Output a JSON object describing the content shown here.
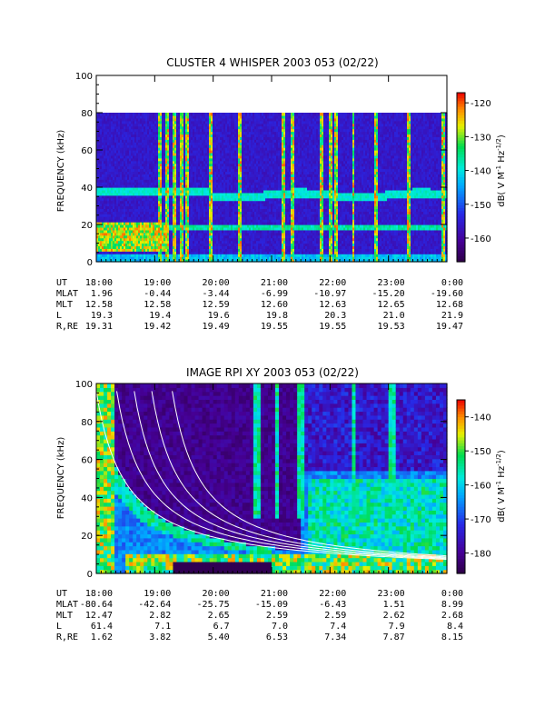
{
  "chart_data": [
    {
      "type": "heatmap",
      "title": "CLUSTER 4 WHISPER 2003 053 (02/22)",
      "ylabel": "FREQUENCY (kHz)",
      "ylim": [
        0,
        100
      ],
      "yticks": [
        "0",
        "20",
        "40",
        "60",
        "80",
        "100"
      ],
      "data_ceiling_khz": 80,
      "xticks": [
        "18:00",
        "19:00",
        "20:00",
        "21:00",
        "22:00",
        "23:00",
        "0:00"
      ],
      "colorbar": {
        "label": "dB( V M",
        "label_sup1": "-1",
        "label_mid": " Hz",
        "label_sup2": "-1/2",
        "label_end": ")",
        "range": [
          -167,
          -117
        ],
        "ticks": [
          "-120",
          "-130",
          "-140",
          "-150",
          "-160"
        ]
      },
      "features": {
        "band_upper_khz": 38,
        "band_lower_khz": 19,
        "intense_region_khz": [
          12,
          22
        ],
        "intense_region_hours": [
          18.0,
          19.2
        ],
        "vertical_bursts_hours": [
          19.1,
          19.2,
          19.35,
          19.45,
          19.55,
          19.95,
          20.45,
          21.2,
          21.35,
          21.85,
          22.0,
          22.1,
          22.4,
          22.8,
          23.35,
          23.95
        ]
      },
      "ephemeris": {
        "labels": [
          "UT",
          "MLAT",
          "MLT",
          "L",
          "R,RE"
        ],
        "rows": [
          [
            "18:00",
            "19:00",
            "20:00",
            "21:00",
            "22:00",
            "23:00",
            "0:00"
          ],
          [
            "1.96",
            "-0.44",
            "-3.44",
            "-6.99",
            "-10.97",
            "-15.20",
            "-19.60"
          ],
          [
            "12.58",
            "12.58",
            "12.59",
            "12.60",
            "12.63",
            "12.65",
            "12.68"
          ],
          [
            "19.3",
            "19.4",
            "19.6",
            "19.8",
            "20.3",
            "21.0",
            "21.9"
          ],
          [
            "19.31",
            "19.42",
            "19.49",
            "19.55",
            "19.55",
            "19.53",
            "19.47"
          ]
        ]
      }
    },
    {
      "type": "heatmap",
      "title": "IMAGE RPI XY 2003 053 (02/22)",
      "ylabel": "FREQUENCY (kHz)",
      "ylim": [
        0,
        100
      ],
      "yticks": [
        "0",
        "20",
        "40",
        "60",
        "80",
        "100"
      ],
      "xticks": [
        "18:00",
        "19:00",
        "20:00",
        "21:00",
        "22:00",
        "23:00",
        "0:00"
      ],
      "colorbar": {
        "label": "dB( V M",
        "label_sup1": "-1",
        "label_mid": " Hz",
        "label_sup2": "-1/2",
        "label_end": ")",
        "range": [
          -186,
          -135
        ],
        "ticks": [
          "-140",
          "-150",
          "-160",
          "-170",
          "-180"
        ]
      },
      "features": {
        "white_curve_offsets_hours": [
          0.0,
          0.35,
          0.65,
          0.95,
          1.3
        ],
        "vertical_bursts_hours": [
          20.75,
          21.1,
          21.5,
          22.4,
          23.05
        ]
      },
      "ephemeris": {
        "labels": [
          "UT",
          "MLAT",
          "MLT",
          "L",
          "R,RE"
        ],
        "rows": [
          [
            "18:00",
            "19:00",
            "20:00",
            "21:00",
            "22:00",
            "23:00",
            "0:00"
          ],
          [
            "-80.64",
            "-42.64",
            "-25.75",
            "-15.09",
            "-6.43",
            "1.51",
            "8.99"
          ],
          [
            "12.47",
            "2.82",
            "2.65",
            "2.59",
            "2.59",
            "2.62",
            "2.68"
          ],
          [
            "61.4",
            "7.1",
            "6.7",
            "7.0",
            "7.4",
            "7.9",
            "8.4"
          ],
          [
            "1.62",
            "3.82",
            "5.40",
            "6.53",
            "7.34",
            "7.87",
            "8.15"
          ]
        ]
      }
    }
  ]
}
